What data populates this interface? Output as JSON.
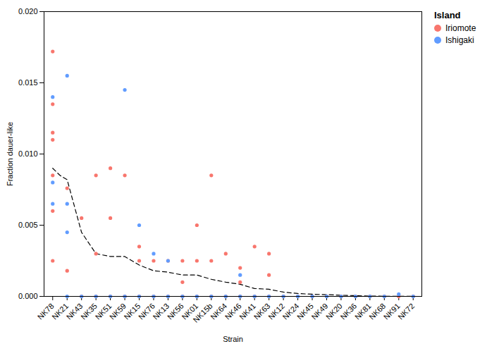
{
  "chart_data": {
    "type": "scatter",
    "xlabel": "Strain",
    "ylabel": "Fraction dauer-like",
    "legend_title": "Island",
    "legend": "upper right",
    "grid": false,
    "xlim": [
      -0.6,
      25.6
    ],
    "xticks": [
      {
        "value": 0,
        "label": "NK78"
      },
      {
        "value": 1,
        "label": "NK21"
      },
      {
        "value": 2,
        "label": "NK43"
      },
      {
        "value": 3,
        "label": "NK35"
      },
      {
        "value": 4,
        "label": "NK51"
      },
      {
        "value": 5,
        "label": "NK59"
      },
      {
        "value": 6,
        "label": "NK15"
      },
      {
        "value": 7,
        "label": "NK76"
      },
      {
        "value": 8,
        "label": "NK13"
      },
      {
        "value": 9,
        "label": "NK56"
      },
      {
        "value": 10,
        "label": "NK01"
      },
      {
        "value": 11,
        "label": "NK15b"
      },
      {
        "value": 12,
        "label": "NK64"
      },
      {
        "value": 13,
        "label": "NK46"
      },
      {
        "value": 14,
        "label": "NK41"
      },
      {
        "value": 15,
        "label": "NK63"
      },
      {
        "value": 16,
        "label": "NK12"
      },
      {
        "value": 17,
        "label": "NK24"
      },
      {
        "value": 18,
        "label": "NK45"
      },
      {
        "value": 19,
        "label": "NK49"
      },
      {
        "value": 20,
        "label": "NK20"
      },
      {
        "value": 21,
        "label": "NK36"
      },
      {
        "value": 22,
        "label": "NK81"
      },
      {
        "value": 23,
        "label": "NK68"
      },
      {
        "value": 24,
        "label": "NK91"
      },
      {
        "value": 25,
        "label": "NK72"
      }
    ],
    "ylim": [
      0,
      0.02
    ],
    "yticks": [
      {
        "value": 0,
        "label": "0.000"
      },
      0.005,
      {
        "value": 0.01,
        "label": "0.010"
      },
      0.015,
      {
        "value": 0.02,
        "label": "0.020"
      }
    ],
    "series": [
      {
        "name": "Iriomote",
        "type": "scatter",
        "marker": "circle",
        "color": "#F8766D",
        "x": [
          0,
          0,
          0,
          0,
          0,
          0,
          0,
          1,
          1,
          2,
          2,
          3,
          3,
          3,
          4,
          4,
          4,
          5,
          5,
          6,
          6,
          6,
          7,
          7,
          8,
          8,
          9,
          9,
          9,
          10,
          10,
          10,
          11,
          11,
          11,
          12,
          12,
          13,
          13,
          13,
          14,
          14,
          15,
          15,
          15,
          16,
          17,
          18,
          19,
          20,
          21,
          22,
          23,
          24,
          25
        ],
        "values": [
          0.0172,
          0.0135,
          0.0115,
          0.011,
          0.0085,
          0.006,
          0.0025,
          0.0076,
          0.0018,
          0.0055,
          0.0,
          0.0085,
          0.003,
          0.0,
          0.009,
          0.0055,
          0.0,
          0.0085,
          0.0,
          0.0035,
          0.0025,
          0.0,
          0.0025,
          0.0,
          0.0025,
          0.0,
          0.0025,
          0.001,
          0.0,
          0.005,
          0.0025,
          0.0,
          0.0085,
          0.0025,
          0.0,
          0.003,
          0.0,
          0.002,
          0.001,
          0.0,
          0.0035,
          0.0,
          0.003,
          0.0015,
          0.0,
          0.0,
          0.0,
          0.0,
          0.0,
          0.0,
          0.0,
          0.0,
          0.0,
          0.0,
          0.0
        ]
      },
      {
        "name": "Ishigaki",
        "type": "scatter",
        "marker": "circle",
        "color": "#619CFF",
        "x": [
          0,
          0,
          0,
          1,
          1,
          1,
          1,
          2,
          3,
          4,
          5,
          5,
          6,
          6,
          7,
          7,
          8,
          8,
          9,
          10,
          11,
          12,
          13,
          13,
          14,
          15,
          16,
          17,
          18,
          19,
          20,
          21,
          22,
          23,
          24,
          25
        ],
        "values": [
          0.014,
          0.008,
          0.0065,
          0.0155,
          0.0065,
          0.0045,
          0.0,
          0.0,
          0.0,
          0.0,
          0.0145,
          0.0,
          0.005,
          0.0,
          0.003,
          0.0,
          0.0025,
          0.0,
          0.0,
          0.0,
          0.0,
          0.0,
          0.0015,
          0.0,
          0.0,
          0.0,
          0.0,
          0.0,
          0.0,
          0.0,
          0.0,
          0.0,
          0.0,
          0.0,
          0.00015,
          0.0
        ]
      },
      {
        "type": "line",
        "line_style": "dashed",
        "color": "black",
        "x": [
          0,
          0.5,
          1,
          2,
          3,
          4,
          5,
          6,
          7,
          8,
          9,
          10,
          11,
          12,
          13,
          14,
          15,
          16,
          17,
          18,
          19,
          20,
          21,
          22,
          23,
          24,
          25
        ],
        "values": [
          0.009,
          0.0085,
          0.0082,
          0.0045,
          0.003,
          0.0028,
          0.0028,
          0.0022,
          0.0018,
          0.0017,
          0.0015,
          0.0015,
          0.0012,
          0.001,
          0.00085,
          0.00055,
          0.0005,
          0.0003,
          0.0002,
          0.00015,
          0.00012,
          8e-05,
          5e-05,
          2e-05,
          1e-05,
          1e-05,
          0.0
        ]
      }
    ]
  }
}
